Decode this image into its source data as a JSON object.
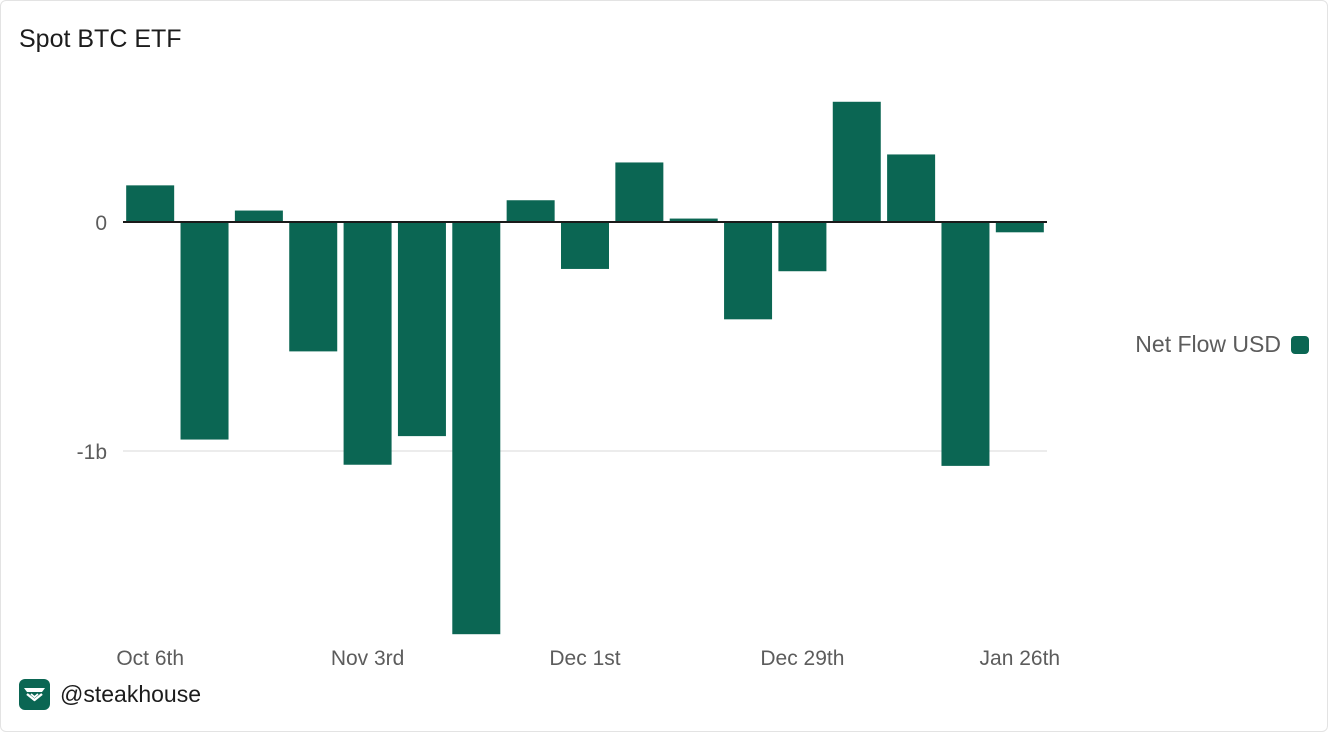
{
  "title": "Spot BTC ETF",
  "footer": {
    "handle": "@steakhouse",
    "logo_icon": "steakhouse-logo-icon"
  },
  "colors": {
    "bar": "#0b6653",
    "axis": "#1a1a1a",
    "grid": "#e6e6e6",
    "tick_text": "#5c5c5c"
  },
  "chart_data": {
    "type": "bar",
    "title": "Spot BTC ETF",
    "xlabel": "",
    "ylabel": "",
    "x_tick_labels": [
      "Oct 6th",
      "Nov 3rd",
      "Dec 1st",
      "Dec 29th",
      "Jan 26th"
    ],
    "y_ticks": [
      {
        "value": 0,
        "label": "0"
      },
      {
        "value": -1000000000,
        "label": "-1b"
      }
    ],
    "ylim": [
      -1800000000,
      540000000
    ],
    "grid": true,
    "legend_position": "right",
    "series": [
      {
        "name": "Net Flow USD",
        "values": [
          160000000,
          -950000000,
          50000000,
          -565000000,
          -1060000000,
          -935000000,
          -1800000000,
          95000000,
          -205000000,
          260000000,
          15000000,
          -425000000,
          -215000000,
          525000000,
          295000000,
          -1065000000,
          -45000000
        ]
      }
    ]
  }
}
